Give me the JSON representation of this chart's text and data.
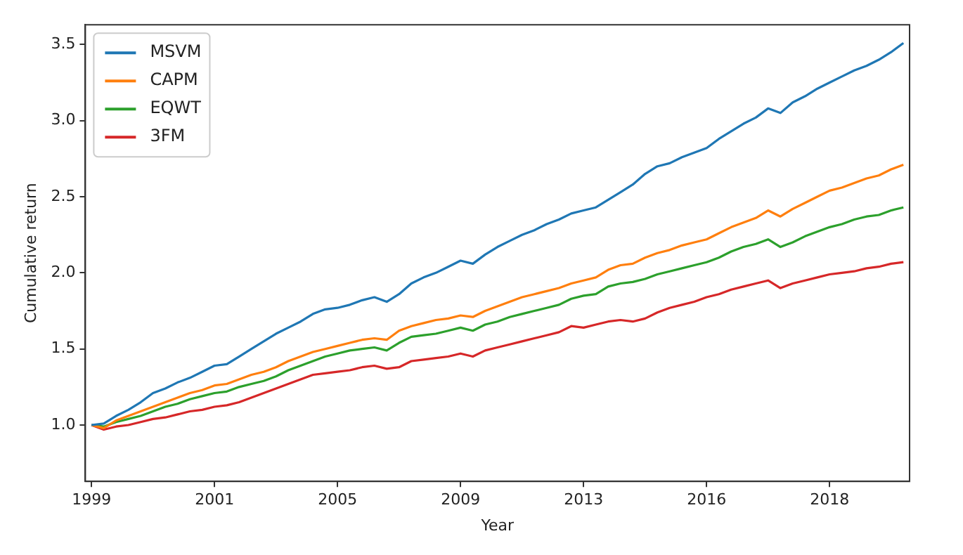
{
  "chart_data": {
    "type": "line",
    "xlabel": "Year",
    "ylabel": "Cumulative return",
    "categories": [
      "1999",
      null,
      null,
      null,
      null,
      null,
      null,
      null,
      null,
      null,
      "2001",
      null,
      null,
      null,
      null,
      null,
      null,
      null,
      null,
      null,
      "2005",
      null,
      null,
      null,
      null,
      null,
      null,
      null,
      null,
      null,
      "2009",
      null,
      null,
      null,
      null,
      null,
      null,
      null,
      null,
      null,
      "2013",
      null,
      null,
      null,
      null,
      null,
      null,
      null,
      null,
      null,
      "2016",
      null,
      null,
      null,
      null,
      null,
      null,
      null,
      null,
      null,
      "2018",
      null,
      null,
      null,
      null,
      null,
      null
    ],
    "series": [
      {
        "name": "MSVM",
        "color": "#1f77b4",
        "values": [
          1.0,
          1.01,
          1.06,
          1.1,
          1.15,
          1.21,
          1.24,
          1.28,
          1.31,
          1.35,
          1.39,
          1.4,
          1.45,
          1.5,
          1.55,
          1.6,
          1.64,
          1.68,
          1.73,
          1.76,
          1.77,
          1.79,
          1.82,
          1.84,
          1.81,
          1.86,
          1.93,
          1.97,
          2.0,
          2.04,
          2.08,
          2.06,
          2.12,
          2.17,
          2.21,
          2.25,
          2.28,
          2.32,
          2.35,
          2.39,
          2.41,
          2.43,
          2.48,
          2.53,
          2.58,
          2.65,
          2.7,
          2.72,
          2.76,
          2.79,
          2.82,
          2.88,
          2.93,
          2.98,
          3.02,
          3.08,
          3.05,
          3.12,
          3.16,
          3.21,
          3.25,
          3.29,
          3.33,
          3.36,
          3.4,
          3.45,
          3.51
        ]
      },
      {
        "name": "CAPM",
        "color": "#ff7f0e",
        "values": [
          1.0,
          0.98,
          1.03,
          1.06,
          1.09,
          1.12,
          1.15,
          1.18,
          1.21,
          1.23,
          1.26,
          1.27,
          1.3,
          1.33,
          1.35,
          1.38,
          1.42,
          1.45,
          1.48,
          1.5,
          1.52,
          1.54,
          1.56,
          1.57,
          1.56,
          1.62,
          1.65,
          1.67,
          1.69,
          1.7,
          1.72,
          1.71,
          1.75,
          1.78,
          1.81,
          1.84,
          1.86,
          1.88,
          1.9,
          1.93,
          1.95,
          1.97,
          2.02,
          2.05,
          2.06,
          2.1,
          2.13,
          2.15,
          2.18,
          2.2,
          2.22,
          2.26,
          2.3,
          2.33,
          2.36,
          2.41,
          2.37,
          2.42,
          2.46,
          2.5,
          2.54,
          2.56,
          2.59,
          2.62,
          2.64,
          2.68,
          2.71
        ]
      },
      {
        "name": "EQWT",
        "color": "#2ca02c",
        "values": [
          1.0,
          0.99,
          1.02,
          1.04,
          1.06,
          1.09,
          1.12,
          1.14,
          1.17,
          1.19,
          1.21,
          1.22,
          1.25,
          1.27,
          1.29,
          1.32,
          1.36,
          1.39,
          1.42,
          1.45,
          1.47,
          1.49,
          1.5,
          1.51,
          1.49,
          1.54,
          1.58,
          1.59,
          1.6,
          1.62,
          1.64,
          1.62,
          1.66,
          1.68,
          1.71,
          1.73,
          1.75,
          1.77,
          1.79,
          1.83,
          1.85,
          1.86,
          1.91,
          1.93,
          1.94,
          1.96,
          1.99,
          2.01,
          2.03,
          2.05,
          2.07,
          2.1,
          2.14,
          2.17,
          2.19,
          2.22,
          2.17,
          2.2,
          2.24,
          2.27,
          2.3,
          2.32,
          2.35,
          2.37,
          2.38,
          2.41,
          2.43
        ]
      },
      {
        "name": "3FM",
        "color": "#d62728",
        "values": [
          1.0,
          0.97,
          0.99,
          1.0,
          1.02,
          1.04,
          1.05,
          1.07,
          1.09,
          1.1,
          1.12,
          1.13,
          1.15,
          1.18,
          1.21,
          1.24,
          1.27,
          1.3,
          1.33,
          1.34,
          1.35,
          1.36,
          1.38,
          1.39,
          1.37,
          1.38,
          1.42,
          1.43,
          1.44,
          1.45,
          1.47,
          1.45,
          1.49,
          1.51,
          1.53,
          1.55,
          1.57,
          1.59,
          1.61,
          1.65,
          1.64,
          1.66,
          1.68,
          1.69,
          1.68,
          1.7,
          1.74,
          1.77,
          1.79,
          1.81,
          1.84,
          1.86,
          1.89,
          1.91,
          1.93,
          1.95,
          1.9,
          1.93,
          1.95,
          1.97,
          1.99,
          2.0,
          2.01,
          2.03,
          2.04,
          2.06,
          2.07
        ]
      }
    ],
    "ylim": [
      0.63,
      3.63
    ],
    "yticks": [
      {
        "value": 1,
        "label": "1.0"
      },
      {
        "value": 1.5,
        "label": "1.5"
      },
      {
        "value": 2,
        "label": "2.0"
      },
      {
        "value": 2.5,
        "label": "2.5"
      },
      {
        "value": 3,
        "label": "3.0"
      },
      {
        "value": 3.5,
        "label": "3.5"
      }
    ],
    "legend": "top left",
    "marker": "none",
    "line_style": "solid"
  }
}
